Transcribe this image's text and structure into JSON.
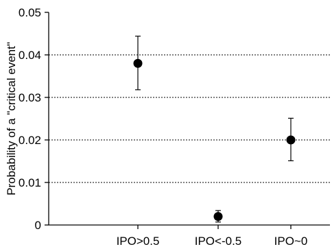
{
  "chart_data": {
    "type": "scatter",
    "title": "",
    "xlabel": "",
    "ylabel": "Probability of  a \"critical event\"",
    "ylim": [
      0,
      0.05
    ],
    "yticks": [
      "0",
      "0.01",
      "0.02",
      "0.03",
      "0.04",
      "0.05"
    ],
    "grid": "horizontal dotted",
    "categories": [
      "IPO>0.5",
      "IPO<-0.5",
      "IPO~0"
    ],
    "series": [
      {
        "values": [
          0.038,
          0.002,
          0.02
        ],
        "error_low": [
          0.0318,
          0.0007,
          0.0151
        ],
        "error_high": [
          0.0444,
          0.0034,
          0.0251
        ]
      }
    ],
    "colors": {
      "marker": "#000000",
      "axis": "#000000",
      "grid": "#000000"
    }
  }
}
